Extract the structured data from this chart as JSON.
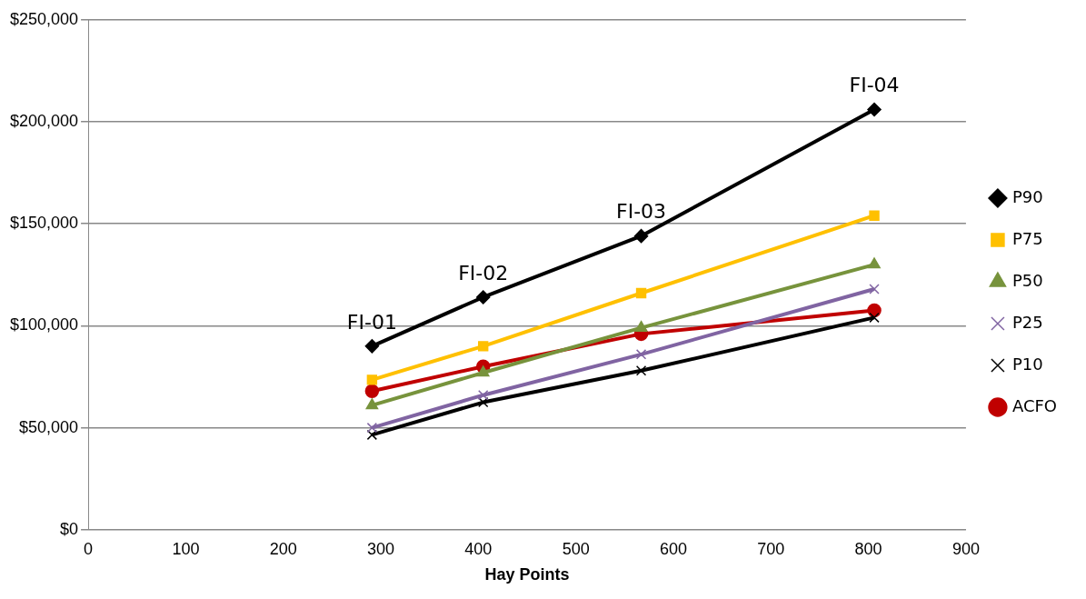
{
  "chart_data": {
    "type": "line",
    "xlabel": "Hay Points",
    "xlim": [
      0,
      900
    ],
    "xticks": [
      0,
      100,
      200,
      300,
      400,
      500,
      600,
      700,
      800,
      900
    ],
    "ylim": [
      0,
      250000
    ],
    "yticks": [
      {
        "value": 0,
        "label": "$0"
      },
      {
        "value": 50000,
        "label": "$50,000"
      },
      {
        "value": 100000,
        "label": "$100,000"
      },
      {
        "value": 150000,
        "label": "$150,000"
      },
      {
        "value": 200000,
        "label": "$200,000"
      },
      {
        "value": 250000,
        "label": "$250,000"
      }
    ],
    "grid": "y",
    "legend": "right",
    "line_style": "solid",
    "x": [
      291,
      405,
      567,
      806
    ],
    "series": [
      {
        "name": "P90",
        "color": "#000000",
        "marker": "diamond",
        "values": [
          90000,
          114000,
          144000,
          206000
        ]
      },
      {
        "name": "P75",
        "color": "#ffc000",
        "marker": "square",
        "values": [
          73500,
          90000,
          116000,
          154000
        ]
      },
      {
        "name": "P50",
        "color": "#77933c",
        "marker": "triangle",
        "values": [
          61000,
          77000,
          99000,
          130000
        ]
      },
      {
        "name": "P25",
        "color": "#8064a2",
        "marker": "cross",
        "values": [
          50000,
          66000,
          86000,
          118000
        ]
      },
      {
        "name": "P10",
        "color": "#000000",
        "marker": "cross",
        "values": [
          46500,
          62500,
          78000,
          104000
        ]
      },
      {
        "name": "ACFO",
        "color": "#c00000",
        "marker": "circle",
        "values": [
          68000,
          80000,
          96000,
          107500
        ]
      }
    ],
    "annotations": [
      {
        "text": "FI-01",
        "x": 291,
        "y": 90000
      },
      {
        "text": "FI-02",
        "x": 405,
        "y": 114000
      },
      {
        "text": "FI-03",
        "x": 567,
        "y": 144000
      },
      {
        "text": "FI-04",
        "x": 806,
        "y": 206000
      }
    ]
  }
}
